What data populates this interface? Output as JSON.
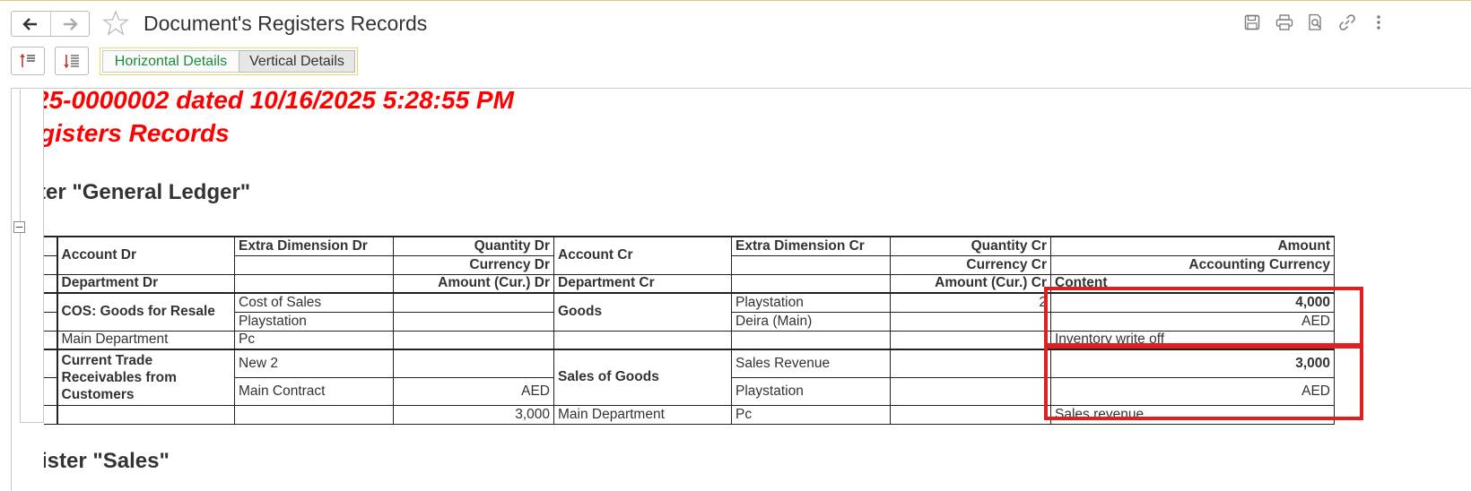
{
  "window": {
    "title": "Document's Registers Records"
  },
  "toolbar": {
    "segmented": [
      "Horizontal Details",
      "Vertical Details"
    ]
  },
  "report": {
    "doc_line": "25-0000002 dated 10/16/2025 5:28:55 PM",
    "subtitle": "gisters Records",
    "register1_title": "ter \"General Ledger\"",
    "register2_title": "ister \"Sales\"",
    "headers": {
      "r1": [
        "Account Dr",
        "Extra Dimension Dr",
        "Quantity Dr",
        "Account Cr",
        "Extra Dimension Cr",
        "Quantity Cr",
        "Amount"
      ],
      "r2": [
        "Currency Dr",
        "Currency Cr",
        "Accounting Currency"
      ],
      "r3": [
        "Department Dr",
        "Amount (Cur.) Dr",
        "Department Cr",
        "Amount (Cur.) Cr",
        "Content"
      ]
    },
    "rec1": {
      "account_dr": "COS: Goods for Resale",
      "extdim_dr_1": "Cost of Sales",
      "extdim_dr_2": "Playstation",
      "department_dr": "Main Department",
      "extdim_dr_3": "Pc",
      "account_cr": "Goods",
      "extdim_cr_1": "Playstation",
      "extdim_cr_2": "Deira (Main)",
      "qty_cr": "2",
      "amount": "4,000",
      "currency": "AED",
      "content": "Inventory write off"
    },
    "rec2": {
      "account_dr": "Current Trade Receivables from Customers",
      "extdim_dr_1": "New 2",
      "extdim_dr_2": "Main Contract",
      "currency_dr": "AED",
      "amount_cur_dr": "3,000",
      "account_cr": "Sales of Goods",
      "extdim_cr_1": "Sales Revenue",
      "extdim_cr_2": "Playstation",
      "department_cr": "Main Department",
      "extdim_cr_3": "Pc",
      "amount": "3,000",
      "currency": "AED",
      "content": "Sales revenue"
    }
  },
  "colors": {
    "accent_green": "#1a8a3c",
    "doc_red": "#ff0000",
    "highlight_red": "#e02020"
  }
}
